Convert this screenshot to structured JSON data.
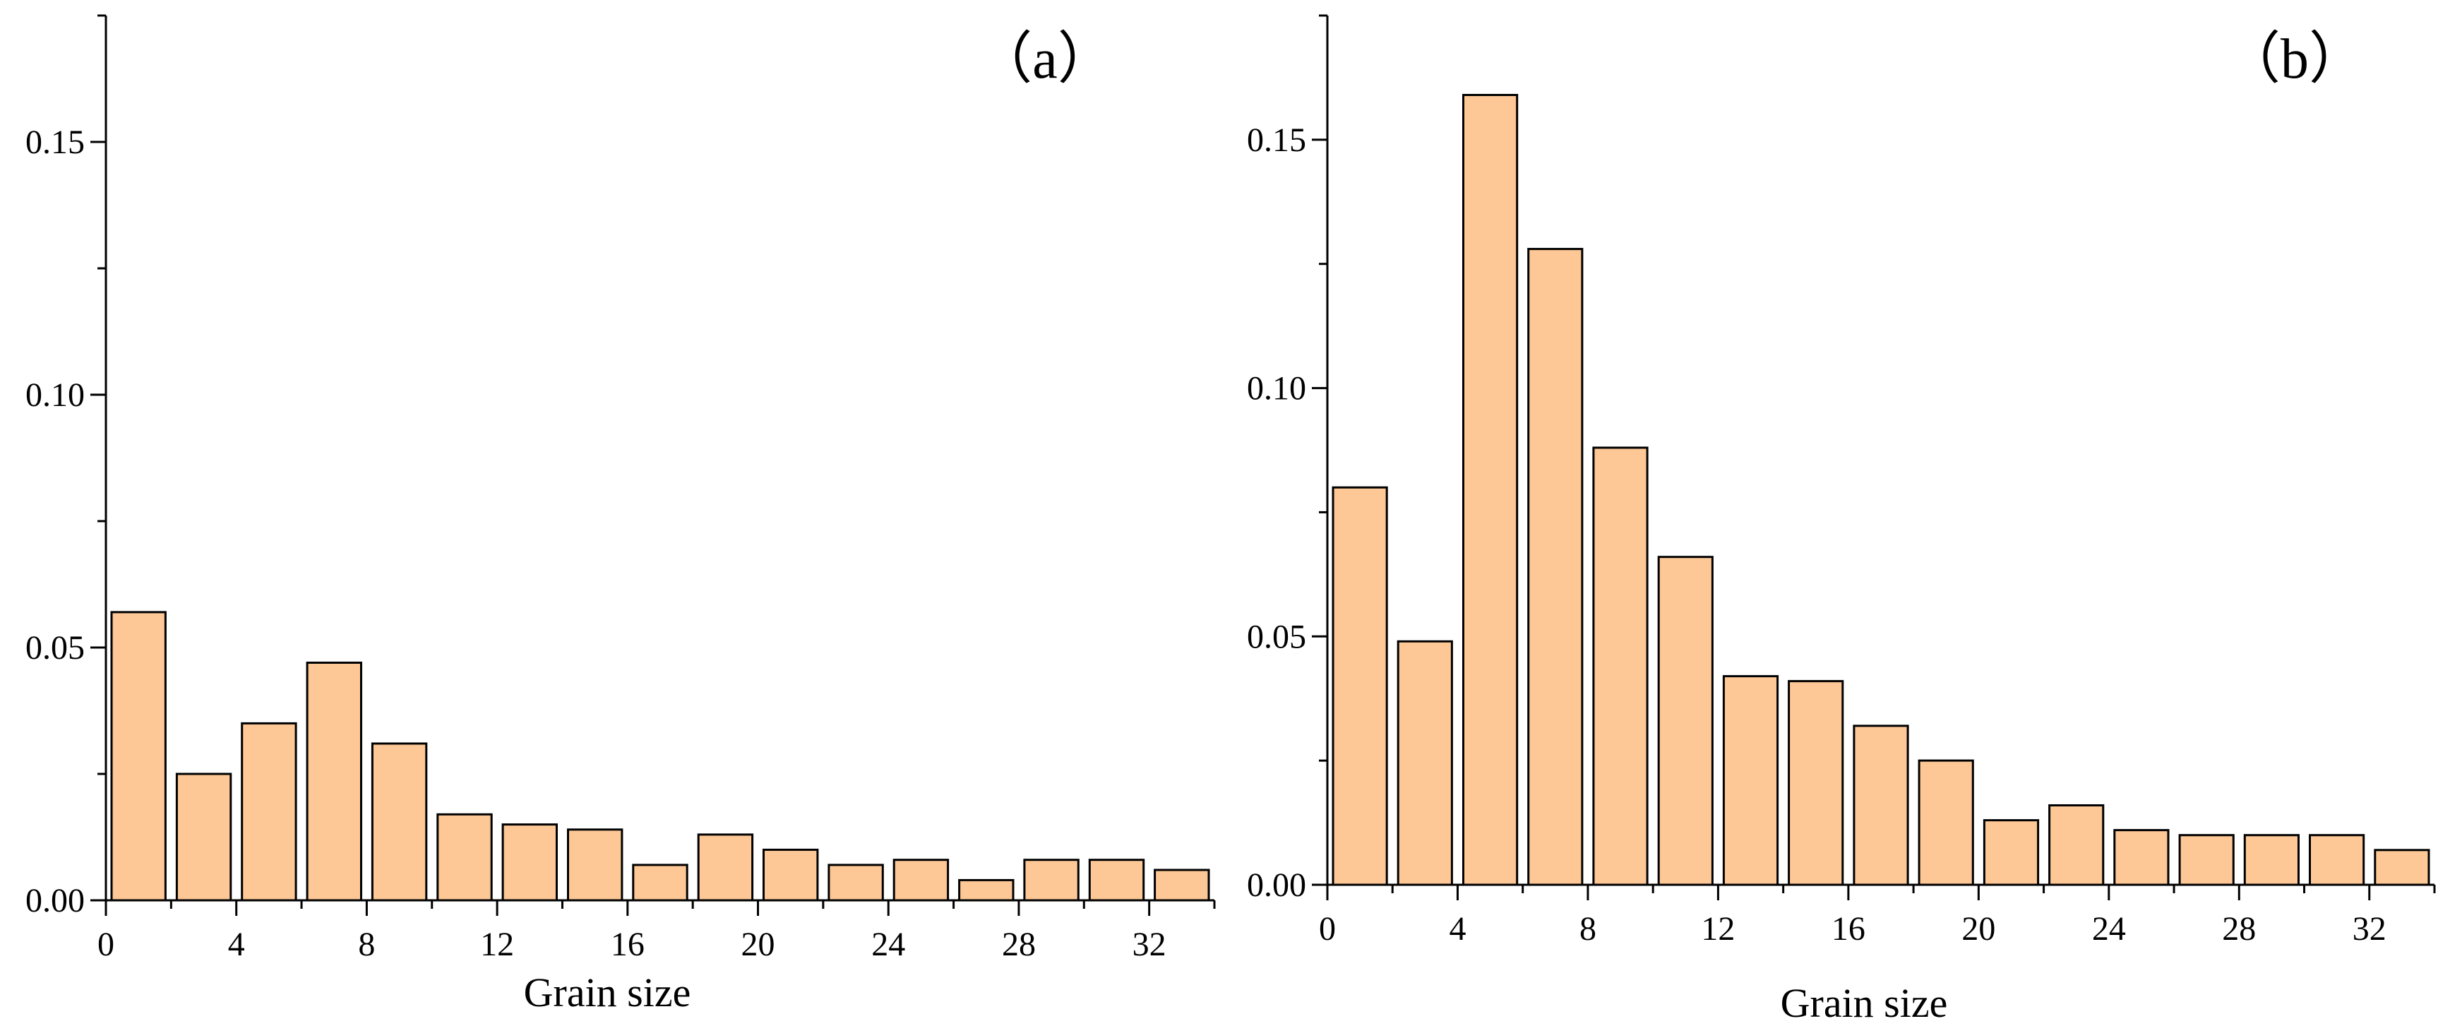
{
  "chart_data": [
    {
      "type": "bar",
      "panel_label": "（a）",
      "xlabel": "Grain size",
      "ylabel": "",
      "xlim": [
        0,
        34
      ],
      "ylim": [
        0,
        0.175
      ],
      "x_ticks": [
        "0",
        "4",
        "8",
        "12",
        "16",
        "20",
        "24",
        "28",
        "32"
      ],
      "y_ticks": [
        "0.00",
        "0.05",
        "0.10",
        "0.15"
      ],
      "bin_width": 2,
      "bins": [
        {
          "x0": 0,
          "x1": 2,
          "value": 0.057
        },
        {
          "x0": 2,
          "x1": 4,
          "value": 0.025
        },
        {
          "x0": 4,
          "x1": 6,
          "value": 0.035
        },
        {
          "x0": 6,
          "x1": 8,
          "value": 0.047
        },
        {
          "x0": 8,
          "x1": 10,
          "value": 0.031
        },
        {
          "x0": 10,
          "x1": 12,
          "value": 0.017
        },
        {
          "x0": 12,
          "x1": 14,
          "value": 0.015
        },
        {
          "x0": 14,
          "x1": 16,
          "value": 0.014
        },
        {
          "x0": 16,
          "x1": 18,
          "value": 0.007
        },
        {
          "x0": 18,
          "x1": 20,
          "value": 0.013
        },
        {
          "x0": 20,
          "x1": 22,
          "value": 0.01
        },
        {
          "x0": 22,
          "x1": 24,
          "value": 0.007
        },
        {
          "x0": 24,
          "x1": 26,
          "value": 0.008
        },
        {
          "x0": 26,
          "x1": 28,
          "value": 0.004
        },
        {
          "x0": 28,
          "x1": 30,
          "value": 0.008
        },
        {
          "x0": 30,
          "x1": 32,
          "value": 0.008
        },
        {
          "x0": 32,
          "x1": 34,
          "value": 0.006
        }
      ],
      "bar_color": "#fdc796",
      "grid": false
    },
    {
      "type": "bar",
      "panel_label": "（b）",
      "xlabel": "Grain size",
      "ylabel": "",
      "xlim": [
        0,
        34
      ],
      "ylim": [
        0,
        0.175
      ],
      "x_ticks": [
        "0",
        "4",
        "8",
        "12",
        "16",
        "20",
        "24",
        "28",
        "32"
      ],
      "y_ticks": [
        "0.00",
        "0.05",
        "0.10",
        "0.15"
      ],
      "bin_width": 2,
      "bins": [
        {
          "x0": 0,
          "x1": 2,
          "value": 0.08
        },
        {
          "x0": 2,
          "x1": 4,
          "value": 0.049
        },
        {
          "x0": 4,
          "x1": 6,
          "value": 0.159
        },
        {
          "x0": 6,
          "x1": 8,
          "value": 0.128
        },
        {
          "x0": 8,
          "x1": 10,
          "value": 0.088
        },
        {
          "x0": 10,
          "x1": 12,
          "value": 0.066
        },
        {
          "x0": 12,
          "x1": 14,
          "value": 0.042
        },
        {
          "x0": 14,
          "x1": 16,
          "value": 0.041
        },
        {
          "x0": 16,
          "x1": 18,
          "value": 0.032
        },
        {
          "x0": 18,
          "x1": 20,
          "value": 0.025
        },
        {
          "x0": 20,
          "x1": 22,
          "value": 0.013
        },
        {
          "x0": 22,
          "x1": 24,
          "value": 0.016
        },
        {
          "x0": 24,
          "x1": 26,
          "value": 0.011
        },
        {
          "x0": 26,
          "x1": 28,
          "value": 0.01
        },
        {
          "x0": 28,
          "x1": 30,
          "value": 0.01
        },
        {
          "x0": 30,
          "x1": 32,
          "value": 0.01
        },
        {
          "x0": 32,
          "x1": 34,
          "value": 0.007
        }
      ],
      "bar_color": "#fdc796",
      "grid": false
    }
  ]
}
